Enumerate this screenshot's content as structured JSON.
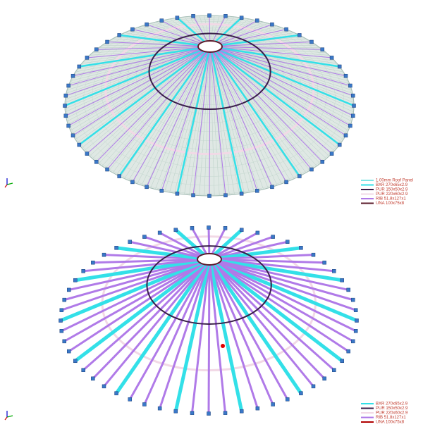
{
  "views": [
    {
      "legend": [
        {
          "label": "1.00mm Roof Panel",
          "color": "#7fe6e6"
        },
        {
          "label": "BXR 270x65x2.9",
          "color": "#33e0e8"
        },
        {
          "label": "PUR 150x50x2.9",
          "color": "#3a1f4a"
        },
        {
          "label": "PUR 220x60x2.9",
          "color": "#f2d9e6"
        },
        {
          "label": "RIB 51.8x127x1",
          "color": "#b07ae8"
        },
        {
          "label": "UNA 100x75x8",
          "color": "#5a1a2a"
        }
      ]
    },
    {
      "legend": [
        {
          "label": "BXR 270x65x2.9",
          "color": "#33e0e8"
        },
        {
          "label": "PUR 150x50x2.9",
          "color": "#3a1f4a"
        },
        {
          "label": "PUR 220x60x2.9",
          "color": "#f2d9e6"
        },
        {
          "label": "RIB 51.8x127x1",
          "color": "#b07ae8"
        },
        {
          "label": "UNA 100x75x8",
          "color": "#b00000"
        }
      ]
    }
  ]
}
